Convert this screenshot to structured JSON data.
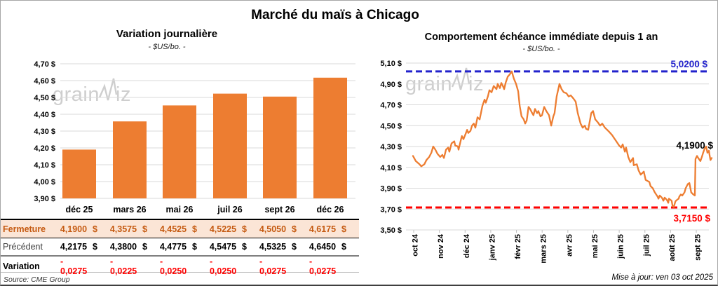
{
  "page": {
    "title": "Marché du maïs à Chicago",
    "source": "Source: CME Group",
    "updated": "Mise à jour: ven 03 oct 2025",
    "watermark": {
      "part1": "grain",
      "part2": "iz"
    }
  },
  "colors": {
    "orange": "#ED7D31",
    "peach": "#FBE5D6",
    "brown": "#C55A11",
    "red": "#FF0000",
    "blue": "#2222CC",
    "grid": "#D9D9D9",
    "axis": "#BFBFBF",
    "text": "#000000"
  },
  "chart_data": [
    {
      "id": "daily_variation",
      "type": "bar",
      "title": "Variation journalière",
      "subtitle": "- $US/bo. -",
      "categories": [
        "déc 25",
        "mars 26",
        "mai 26",
        "juil 26",
        "sept 26",
        "déc 26"
      ],
      "values": [
        4.19,
        4.3575,
        4.4525,
        4.5225,
        4.505,
        4.6175
      ],
      "ylim": [
        3.9,
        4.7
      ],
      "ytick_step": 0.1,
      "ytick_suffix": " $",
      "grid": true,
      "legend": "none"
    },
    {
      "id": "front_month_one_year",
      "type": "line",
      "title": "Comportement échéance immédiate depuis 1 an",
      "subtitle": "- $US/bo. -",
      "x_categories": [
        "oct 24",
        "nov 24",
        "déc 24",
        "janv 25",
        "févr 25",
        "mars 25",
        "avr 25",
        "mai 25",
        "juin 25",
        "juil 25",
        "août 25",
        "sept 25"
      ],
      "ylim": [
        3.5,
        5.1
      ],
      "ytick_step": 0.2,
      "ytick_suffix": " $",
      "grid": true,
      "legend": "none",
      "ref_lines": [
        {
          "value": 5.02,
          "label": "5,0200 $",
          "color_key": "blue",
          "style": "dashed",
          "label_position": "above-right"
        },
        {
          "value": 3.715,
          "label": "3,7150 $",
          "color_key": "red",
          "style": "dashed",
          "label_position": "below-right"
        }
      ],
      "last_value": 4.19,
      "last_value_label": "4,1900 $",
      "points": [
        [
          2.3,
          4.21
        ],
        [
          3.2,
          4.16
        ],
        [
          4.4,
          4.13
        ],
        [
          5.0,
          4.11
        ],
        [
          6.0,
          4.13
        ],
        [
          6.7,
          4.17
        ],
        [
          7.6,
          4.2
        ],
        [
          8.3,
          4.24
        ],
        [
          8.9,
          4.3
        ],
        [
          9.6,
          4.27
        ],
        [
          10.3,
          4.23
        ],
        [
          11.2,
          4.2
        ],
        [
          11.9,
          4.22
        ],
        [
          12.4,
          4.19
        ],
        [
          13.1,
          4.27
        ],
        [
          13.8,
          4.29
        ],
        [
          14.2,
          4.25
        ],
        [
          14.9,
          4.33
        ],
        [
          15.8,
          4.35
        ],
        [
          16.1,
          4.31
        ],
        [
          17.0,
          4.3
        ],
        [
          17.2,
          4.27
        ],
        [
          18.1,
          4.38
        ],
        [
          18.3,
          4.4
        ],
        [
          18.8,
          4.37
        ],
        [
          19.5,
          4.42
        ],
        [
          20.0,
          4.46
        ],
        [
          20.4,
          4.43
        ],
        [
          21.1,
          4.45
        ],
        [
          21.6,
          4.5
        ],
        [
          22.2,
          4.52
        ],
        [
          22.7,
          4.48
        ],
        [
          23.4,
          4.58
        ],
        [
          24.1,
          4.56
        ],
        [
          25.0,
          4.69
        ],
        [
          25.7,
          4.75
        ],
        [
          26.1,
          4.72
        ],
        [
          26.8,
          4.78
        ],
        [
          27.3,
          4.84
        ],
        [
          28.0,
          4.82
        ],
        [
          28.7,
          4.88
        ],
        [
          29.6,
          4.85
        ],
        [
          30.0,
          4.9
        ],
        [
          30.7,
          4.86
        ],
        [
          31.2,
          4.91
        ],
        [
          31.7,
          4.88
        ],
        [
          32.1,
          4.85
        ],
        [
          32.6,
          4.91
        ],
        [
          33.3,
          4.97
        ],
        [
          33.9,
          4.99
        ],
        [
          34.6,
          5.02
        ],
        [
          35.3,
          4.95
        ],
        [
          36.0,
          4.9
        ],
        [
          36.7,
          4.83
        ],
        [
          37.2,
          4.69
        ],
        [
          37.8,
          4.59
        ],
        [
          38.5,
          4.56
        ],
        [
          39.0,
          4.52
        ],
        [
          39.5,
          4.55
        ],
        [
          40.1,
          4.68
        ],
        [
          40.6,
          4.66
        ],
        [
          41.1,
          4.63
        ],
        [
          41.7,
          4.6
        ],
        [
          42.2,
          4.66
        ],
        [
          42.9,
          4.62
        ],
        [
          43.3,
          4.64
        ],
        [
          44.0,
          4.59
        ],
        [
          44.5,
          4.6
        ],
        [
          45.2,
          4.68
        ],
        [
          45.9,
          4.64
        ],
        [
          46.8,
          4.6
        ],
        [
          47.5,
          4.5
        ],
        [
          48.2,
          4.59
        ],
        [
          48.6,
          4.62
        ],
        [
          49.3,
          4.78
        ],
        [
          50.2,
          4.9
        ],
        [
          50.9,
          4.85
        ],
        [
          51.6,
          4.82
        ],
        [
          52.5,
          4.81
        ],
        [
          53.2,
          4.78
        ],
        [
          53.9,
          4.79
        ],
        [
          54.8,
          4.76
        ],
        [
          55.5,
          4.73
        ],
        [
          56.2,
          4.62
        ],
        [
          57.1,
          4.52
        ],
        [
          57.8,
          4.48
        ],
        [
          58.5,
          4.5
        ],
        [
          58.9,
          4.47
        ],
        [
          59.6,
          4.46
        ],
        [
          60.6,
          4.62
        ],
        [
          61.2,
          4.64
        ],
        [
          61.9,
          4.56
        ],
        [
          62.8,
          4.53
        ],
        [
          63.5,
          4.5
        ],
        [
          64.2,
          4.52
        ],
        [
          65.1,
          4.48
        ],
        [
          65.8,
          4.46
        ],
        [
          66.5,
          4.44
        ],
        [
          67.4,
          4.41
        ],
        [
          68.1,
          4.38
        ],
        [
          68.8,
          4.35
        ],
        [
          69.7,
          4.31
        ],
        [
          70.4,
          4.29
        ],
        [
          70.9,
          4.32
        ],
        [
          71.6,
          4.25
        ],
        [
          72.0,
          4.29
        ],
        [
          72.7,
          4.2
        ],
        [
          73.4,
          4.15
        ],
        [
          74.3,
          4.19
        ],
        [
          74.5,
          4.12
        ],
        [
          75.5,
          4.13
        ],
        [
          76.1,
          4.07
        ],
        [
          76.8,
          4.03
        ],
        [
          77.8,
          4.06
        ],
        [
          78.4,
          3.98
        ],
        [
          79.6,
          3.96
        ],
        [
          80.0,
          3.92
        ],
        [
          80.7,
          3.9
        ],
        [
          81.4,
          3.86
        ],
        [
          82.3,
          3.82
        ],
        [
          82.6,
          3.8
        ],
        [
          83.0,
          3.83
        ],
        [
          83.7,
          3.81
        ],
        [
          84.2,
          3.78
        ],
        [
          84.6,
          3.81
        ],
        [
          85.3,
          3.79
        ],
        [
          85.8,
          3.76
        ],
        [
          86.0,
          3.8
        ],
        [
          86.9,
          3.78
        ],
        [
          87.2,
          3.73
        ],
        [
          87.6,
          3.72
        ],
        [
          88.1,
          3.77
        ],
        [
          88.3,
          3.78
        ],
        [
          89.2,
          3.8
        ],
        [
          89.4,
          3.82
        ],
        [
          89.9,
          3.84
        ],
        [
          90.4,
          3.83
        ],
        [
          91.1,
          3.86
        ],
        [
          91.5,
          3.9
        ],
        [
          92.2,
          3.94
        ],
        [
          92.7,
          3.95
        ],
        [
          93.3,
          3.86
        ],
        [
          94.0,
          3.84
        ],
        [
          94.5,
          3.83
        ],
        [
          94.7,
          4.18
        ],
        [
          95.2,
          4.21
        ],
        [
          95.6,
          4.19
        ],
        [
          96.3,
          4.16
        ],
        [
          96.8,
          4.2
        ],
        [
          97.2,
          4.24
        ],
        [
          97.7,
          4.28
        ],
        [
          98.2,
          4.3
        ],
        [
          98.6,
          4.24
        ],
        [
          99.1,
          4.26
        ],
        [
          99.3,
          4.22
        ],
        [
          99.6,
          4.17
        ],
        [
          100,
          4.19
        ]
      ]
    }
  ],
  "table": {
    "columns": [
      "déc 25",
      "mars 26",
      "mai 26",
      "juil 26",
      "sept 26",
      "déc 26"
    ],
    "rows": [
      {
        "label": "Fermeture",
        "style": "close",
        "suffix": "$",
        "values": [
          "4,1900",
          "4,3575",
          "4,4525",
          "4,5225",
          "4,5050",
          "4,6175"
        ]
      },
      {
        "label": "Précédent",
        "style": "prev",
        "suffix": "$",
        "values": [
          "4,2175",
          "4,3800",
          "4,4775",
          "4,5475",
          "4,5325",
          "4,6450"
        ]
      },
      {
        "label": "Variation",
        "style": "var",
        "suffix": "",
        "values": [
          "- 0,0275",
          "- 0,0225",
          "- 0,0250",
          "- 0,0250",
          "- 0,0275",
          "- 0,0275"
        ]
      }
    ]
  }
}
